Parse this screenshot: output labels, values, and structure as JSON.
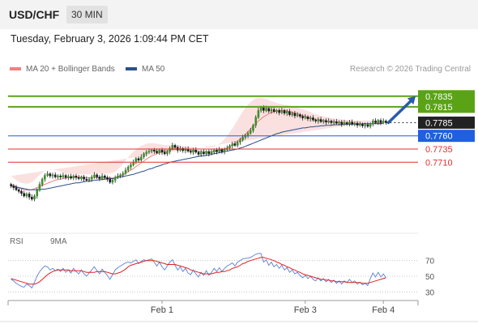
{
  "header": {
    "symbol": "USD/CHF",
    "timeframe": "30 MIN"
  },
  "datetime": "Tuesday, February 3, 2026 1:09:44 PM CET",
  "legend": {
    "ma20": {
      "label": "MA 20 + Bollinger Bands",
      "color": "#f08080"
    },
    "ma50": {
      "label": "MA 50",
      "color": "#2c4f8a"
    },
    "credit": "Research © 2026 Trading Central"
  },
  "rsi_legend": {
    "rsi": {
      "label": "RSI",
      "color": "#5b7fd6"
    },
    "ma": {
      "label": "9MA",
      "color": "#e02020"
    }
  },
  "chart_data": [
    {
      "type": "candlestick",
      "ylim": [
        0.758,
        0.787
      ],
      "levels": [
        {
          "value": 0.7835,
          "label": "0.7835",
          "kind": "resistance",
          "color": "#5aa317"
        },
        {
          "value": 0.7815,
          "label": "0.7815",
          "kind": "resistance",
          "color": "#5aa317"
        },
        {
          "value": 0.7785,
          "label": "0.7785",
          "kind": "last-price",
          "color": "#222222"
        },
        {
          "value": 0.776,
          "label": "0.7760",
          "kind": "pivot",
          "color": "#1f5fe0"
        },
        {
          "value": 0.7735,
          "label": "0.7735",
          "kind": "support",
          "color": "#e03030"
        },
        {
          "value": 0.771,
          "label": "0.7710",
          "kind": "support",
          "color": "#e03030"
        }
      ],
      "close": [
        0.7665,
        0.7662,
        0.7658,
        0.7655,
        0.7651,
        0.7646,
        0.765,
        0.7644,
        0.764,
        0.7646,
        0.7657,
        0.7668,
        0.7678,
        0.7685,
        0.7688,
        0.7684,
        0.7686,
        0.7682,
        0.7684,
        0.7682,
        0.7685,
        0.7681,
        0.7683,
        0.768,
        0.7684,
        0.7681,
        0.7679,
        0.7682,
        0.7678,
        0.7676,
        0.7678,
        0.7682,
        0.7686,
        0.7682,
        0.7679,
        0.7684,
        0.7681,
        0.7678,
        0.7672,
        0.7676,
        0.7681,
        0.7684,
        0.7686,
        0.7689,
        0.7695,
        0.7701,
        0.7705,
        0.771,
        0.7717,
        0.7714,
        0.772,
        0.7726,
        0.7729,
        0.7731,
        0.7733,
        0.7731,
        0.7728,
        0.7733,
        0.7729,
        0.7726,
        0.773,
        0.7736,
        0.7742,
        0.7738,
        0.7733,
        0.7736,
        0.7732,
        0.7735,
        0.7731,
        0.7729,
        0.7733,
        0.7729,
        0.7725,
        0.7729,
        0.7726,
        0.773,
        0.7726,
        0.7729,
        0.7733,
        0.773,
        0.7734,
        0.773,
        0.7734,
        0.7737,
        0.7741,
        0.7745,
        0.7742,
        0.7748,
        0.7752,
        0.7757,
        0.7761,
        0.7765,
        0.777,
        0.778,
        0.7795,
        0.7808,
        0.7814,
        0.7808,
        0.7812,
        0.7807,
        0.781,
        0.7806,
        0.7808,
        0.7804,
        0.7808,
        0.7803,
        0.7806,
        0.78,
        0.7803,
        0.7798,
        0.78,
        0.7797,
        0.7794,
        0.7796,
        0.7792,
        0.7794,
        0.779,
        0.7788,
        0.7791,
        0.7787,
        0.7789,
        0.7786,
        0.7788,
        0.7785,
        0.7787,
        0.7784,
        0.7786,
        0.7782,
        0.7785,
        0.7783,
        0.7786,
        0.7782,
        0.7784,
        0.778,
        0.7782,
        0.7779,
        0.7781,
        0.7778,
        0.7783,
        0.7788,
        0.7785,
        0.7789,
        0.7785,
        0.7788,
        0.7785
      ],
      "ma20": [
        0.7668,
        0.7666,
        0.7664,
        0.7662,
        0.766,
        0.7658,
        0.7657,
        0.7657,
        0.7658,
        0.766,
        0.7662,
        0.7664,
        0.7666,
        0.7668,
        0.767,
        0.7672,
        0.7674,
        0.7676,
        0.7677,
        0.7678,
        0.7679,
        0.768,
        0.7681,
        0.7681,
        0.7682,
        0.7682,
        0.7682,
        0.7682,
        0.7681,
        0.7681,
        0.7681,
        0.7681,
        0.7681,
        0.7681,
        0.7681,
        0.768,
        0.768,
        0.768,
        0.768,
        0.768,
        0.7681,
        0.7682,
        0.7684,
        0.7686,
        0.7689,
        0.7692,
        0.7695,
        0.7698,
        0.7702,
        0.7705,
        0.7709,
        0.7712,
        0.7716,
        0.7719,
        0.7722,
        0.7724,
        0.7726,
        0.7728,
        0.773,
        0.7731,
        0.7732,
        0.7733,
        0.7734,
        0.7734,
        0.7734,
        0.7734,
        0.7734,
        0.7734,
        0.7733,
        0.7733,
        0.7732,
        0.7732,
        0.7731,
        0.7731,
        0.773,
        0.773,
        0.773,
        0.773,
        0.773,
        0.7731,
        0.7732,
        0.7733,
        0.7735,
        0.7737,
        0.774,
        0.7743,
        0.7746,
        0.775,
        0.7754,
        0.7758,
        0.7763,
        0.7768,
        0.7773,
        0.7778,
        0.7783,
        0.7788,
        0.7792,
        0.7796,
        0.7799,
        0.7802,
        0.7804,
        0.7806,
        0.7807,
        0.7808,
        0.7808,
        0.7808,
        0.7807,
        0.7806,
        0.7805,
        0.7803,
        0.7802,
        0.78,
        0.7798,
        0.7797,
        0.7795,
        0.7794,
        0.7792,
        0.7791,
        0.779,
        0.7789,
        0.7788,
        0.7787,
        0.7787,
        0.7786,
        0.7786,
        0.7785,
        0.7785,
        0.7785,
        0.7784,
        0.7784,
        0.7784,
        0.7784,
        0.7783,
        0.7783,
        0.7783,
        0.7783,
        0.7783,
        0.7783,
        0.7783,
        0.7783,
        0.7784,
        0.7784,
        0.7784,
        0.7784
      ],
      "bb_upper": [
        0.7684,
        0.768,
        0.7676,
        0.7673,
        0.7671,
        0.767,
        0.7669,
        0.767,
        0.7672,
        0.7676,
        0.7681,
        0.7686,
        0.769,
        0.7693,
        0.7695,
        0.7696,
        0.7696,
        0.7695,
        0.7694,
        0.7692,
        0.769,
        0.7689,
        0.7688,
        0.7688,
        0.7688,
        0.7687,
        0.7687,
        0.7687,
        0.7687,
        0.7687,
        0.7687,
        0.7687,
        0.7688,
        0.7688,
        0.7688,
        0.7688,
        0.7688,
        0.7688,
        0.7689,
        0.769,
        0.7692,
        0.7696,
        0.7701,
        0.7707,
        0.7713,
        0.7719,
        0.7725,
        0.773,
        0.7734,
        0.7738,
        0.7741,
        0.7743,
        0.7745,
        0.7746,
        0.7746,
        0.7746,
        0.7745,
        0.7744,
        0.7743,
        0.7742,
        0.7742,
        0.7742,
        0.7742,
        0.7742,
        0.7741,
        0.7741,
        0.774,
        0.774,
        0.774,
        0.7739,
        0.7739,
        0.7738,
        0.7738,
        0.7738,
        0.7738,
        0.7738,
        0.7738,
        0.7739,
        0.774,
        0.7742,
        0.7745,
        0.7749,
        0.7754,
        0.776,
        0.7767,
        0.7774,
        0.7782,
        0.779,
        0.7798,
        0.7806,
        0.7813,
        0.7819,
        0.7824,
        0.7828,
        0.7831,
        0.7832,
        0.7832,
        0.7831,
        0.783,
        0.7828,
        0.7826,
        0.7824,
        0.7822,
        0.7821,
        0.782,
        0.7819,
        0.7818,
        0.7817,
        0.7816,
        0.7814,
        0.7813,
        0.7812,
        0.781,
        0.7809,
        0.7807,
        0.7805,
        0.7803,
        0.7801,
        0.78,
        0.7798,
        0.7797,
        0.7796,
        0.7795,
        0.7794,
        0.7793,
        0.7792,
        0.7792,
        0.7791,
        0.7791,
        0.779,
        0.779,
        0.779,
        0.7789,
        0.7789,
        0.7789,
        0.7789,
        0.7789,
        0.7789,
        0.7789,
        0.7789,
        0.779,
        0.779,
        0.779,
        0.779
      ],
      "bb_lower": [
        0.7652,
        0.765,
        0.7648,
        0.7646,
        0.7644,
        0.7642,
        0.7641,
        0.7641,
        0.7641,
        0.7642,
        0.7643,
        0.7645,
        0.7648,
        0.7652,
        0.7656,
        0.766,
        0.7664,
        0.7668,
        0.7671,
        0.7673,
        0.7675,
        0.7676,
        0.7677,
        0.7677,
        0.7677,
        0.7677,
        0.7677,
        0.7676,
        0.7675,
        0.7675,
        0.7675,
        0.7675,
        0.7674,
        0.7674,
        0.7673,
        0.7672,
        0.7672,
        0.7672,
        0.7671,
        0.767,
        0.767,
        0.7669,
        0.7669,
        0.7669,
        0.767,
        0.7671,
        0.7673,
        0.7676,
        0.768,
        0.7684,
        0.7689,
        0.7694,
        0.7699,
        0.7704,
        0.7709,
        0.7712,
        0.7715,
        0.7718,
        0.772,
        0.7721,
        0.7722,
        0.7723,
        0.7723,
        0.7723,
        0.7723,
        0.7723,
        0.7723,
        0.7723,
        0.7722,
        0.7722,
        0.7722,
        0.7722,
        0.7721,
        0.7721,
        0.7721,
        0.7721,
        0.7721,
        0.7721,
        0.7721,
        0.7721,
        0.7721,
        0.7721,
        0.7722,
        0.7723,
        0.7725,
        0.7728,
        0.7731,
        0.7734,
        0.7738,
        0.7742,
        0.7747,
        0.7752,
        0.7757,
        0.7762,
        0.7767,
        0.7772,
        0.7776,
        0.778,
        0.7783,
        0.7786,
        0.7788,
        0.779,
        0.7791,
        0.7792,
        0.7793,
        0.7793,
        0.7793,
        0.7793,
        0.7792,
        0.7791,
        0.779,
        0.7789,
        0.7787,
        0.7786,
        0.7784,
        0.7783,
        0.7781,
        0.778,
        0.7779,
        0.7778,
        0.7777,
        0.7776,
        0.7776,
        0.7776,
        0.7776,
        0.7776,
        0.7776,
        0.7776,
        0.7776,
        0.7776,
        0.7776,
        0.7776,
        0.7776,
        0.7776,
        0.7776,
        0.7776,
        0.7776,
        0.7776,
        0.7776,
        0.7777,
        0.7777,
        0.7777,
        0.7777,
        0.7777
      ],
      "ma50": [
        0.7665,
        0.7664,
        0.7663,
        0.7662,
        0.7661,
        0.766,
        0.7659,
        0.7658,
        0.7658,
        0.7658,
        0.7658,
        0.7658,
        0.7659,
        0.7659,
        0.766,
        0.7661,
        0.7662,
        0.7663,
        0.7664,
        0.7665,
        0.7666,
        0.7667,
        0.7668,
        0.7669,
        0.767,
        0.7671,
        0.7671,
        0.7672,
        0.7673,
        0.7674,
        0.7674,
        0.7675,
        0.7676,
        0.7676,
        0.7677,
        0.7677,
        0.7678,
        0.7678,
        0.7679,
        0.7679,
        0.768,
        0.7681,
        0.7682,
        0.7683,
        0.7684,
        0.7685,
        0.7686,
        0.7687,
        0.7689,
        0.769,
        0.7692,
        0.7693,
        0.7695,
        0.7697,
        0.7698,
        0.77,
        0.7702,
        0.7703,
        0.7705,
        0.7707,
        0.7708,
        0.771,
        0.7711,
        0.7712,
        0.7713,
        0.7714,
        0.7715,
        0.7716,
        0.7717,
        0.7718,
        0.7719,
        0.772,
        0.7721,
        0.7722,
        0.7722,
        0.7723,
        0.7724,
        0.7725,
        0.7726,
        0.7727,
        0.7728,
        0.7729,
        0.773,
        0.7731,
        0.7732,
        0.7733,
        0.7734,
        0.7735,
        0.7737,
        0.7738,
        0.774,
        0.7742,
        0.7744,
        0.7746,
        0.7748,
        0.775,
        0.7752,
        0.7754,
        0.7756,
        0.7758,
        0.776,
        0.7762,
        0.7764,
        0.7765,
        0.7767,
        0.7768,
        0.7769,
        0.777,
        0.7771,
        0.7772,
        0.7773,
        0.7774,
        0.7775,
        0.7775,
        0.7776,
        0.7777,
        0.7777,
        0.7778,
        0.7778,
        0.7779,
        0.7779,
        0.778,
        0.778,
        0.778,
        0.7781,
        0.7781,
        0.7781,
        0.7781,
        0.7782,
        0.7782,
        0.7782,
        0.7782,
        0.7782,
        0.7782,
        0.7782,
        0.7783,
        0.7783,
        0.7783,
        0.7783,
        0.7783,
        0.7783,
        0.7783,
        0.7783,
        0.7784
      ],
      "projection": {
        "from": 0.7785,
        "to": 0.7835
      }
    },
    {
      "type": "line",
      "ylim": [
        20,
        80
      ],
      "ticks": [
        {
          "value": 70,
          "label": "70"
        },
        {
          "value": 50,
          "label": "50"
        },
        {
          "value": 30,
          "label": "30"
        }
      ],
      "rsi": [
        46,
        44,
        41,
        39,
        37,
        36,
        40,
        38,
        35,
        42,
        50,
        56,
        60,
        63,
        62,
        58,
        60,
        57,
        59,
        56,
        60,
        55,
        58,
        54,
        60,
        56,
        53,
        58,
        53,
        50,
        54,
        58,
        62,
        57,
        53,
        59,
        55,
        51,
        46,
        52,
        58,
        61,
        63,
        65,
        67,
        68,
        67,
        69,
        71,
        66,
        69,
        71,
        70,
        71,
        72,
        68,
        63,
        68,
        62,
        58,
        63,
        68,
        71,
        64,
        58,
        62,
        56,
        60,
        54,
        52,
        58,
        53,
        49,
        55,
        51,
        57,
        51,
        55,
        60,
        56,
        61,
        56,
        60,
        63,
        65,
        67,
        63,
        68,
        70,
        72,
        73,
        73,
        74,
        76,
        78,
        79,
        79,
        68,
        71,
        64,
        68,
        62,
        65,
        60,
        64,
        58,
        61,
        55,
        58,
        53,
        55,
        51,
        48,
        51,
        47,
        50,
        46,
        44,
        48,
        44,
        47,
        43,
        46,
        42,
        45,
        41,
        44,
        40,
        44,
        42,
        46,
        42,
        44,
        40,
        42,
        39,
        41,
        38,
        47,
        54,
        49,
        55,
        49,
        53,
        48
      ],
      "ma9": [
        47,
        46,
        45,
        44,
        43,
        42,
        41,
        40,
        40,
        40,
        41,
        43,
        46,
        49,
        52,
        54,
        56,
        57,
        58,
        58,
        58,
        58,
        58,
        57,
        57,
        57,
        57,
        57,
        56,
        55,
        55,
        55,
        55,
        56,
        56,
        56,
        56,
        55,
        54,
        53,
        53,
        54,
        55,
        57,
        59,
        62,
        64,
        65,
        66,
        67,
        68,
        69,
        70,
        70,
        70,
        70,
        69,
        68,
        67,
        66,
        65,
        65,
        65,
        65,
        64,
        63,
        62,
        61,
        60,
        58,
        57,
        56,
        55,
        54,
        53,
        53,
        53,
        53,
        54,
        55,
        55,
        56,
        56,
        57,
        58,
        60,
        61,
        62,
        64,
        66,
        67,
        69,
        70,
        71,
        72,
        73,
        74,
        74,
        73,
        72,
        71,
        70,
        68,
        67,
        65,
        64,
        62,
        61,
        59,
        58,
        56,
        55,
        53,
        52,
        51,
        50,
        49,
        48,
        47,
        46,
        46,
        45,
        45,
        44,
        44,
        43,
        43,
        43,
        43,
        42,
        42,
        42,
        42,
        42,
        42,
        41,
        41,
        41,
        42,
        43,
        44,
        45,
        46,
        47,
        48
      ]
    }
  ],
  "x_axis": {
    "ticks": [
      {
        "index": 58,
        "label": "Feb 1"
      },
      {
        "index": 113,
        "label": "Feb 3"
      },
      {
        "index": 143,
        "label": "Feb 4"
      }
    ]
  }
}
